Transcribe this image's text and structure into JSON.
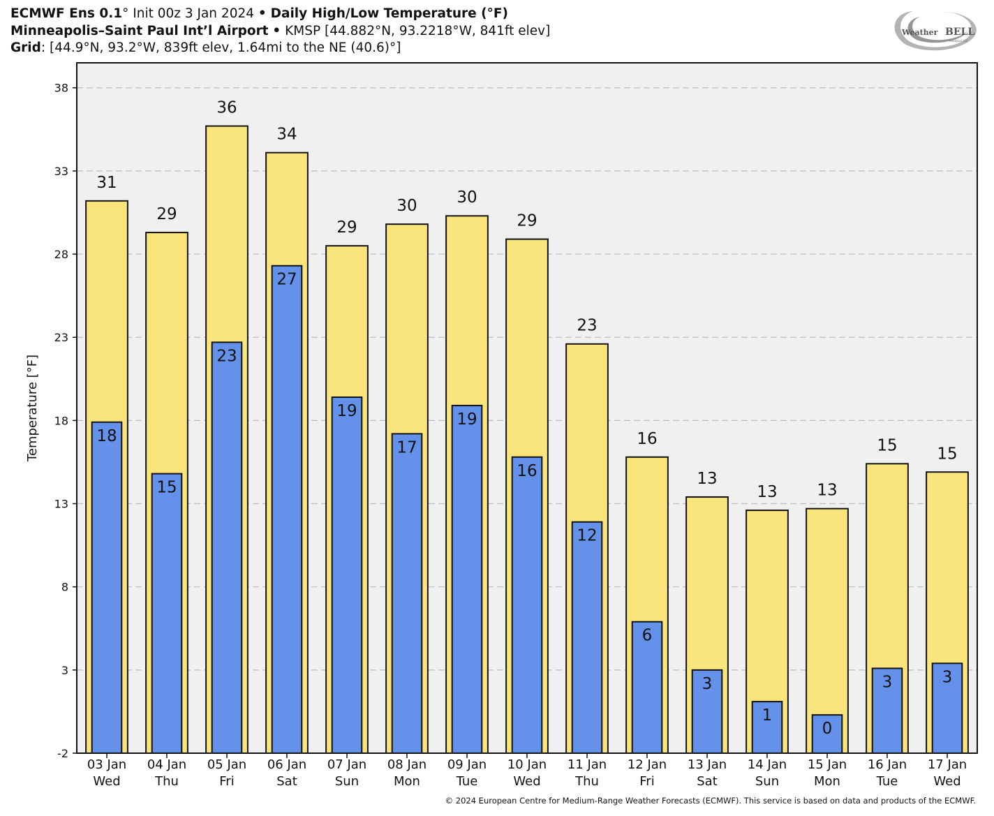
{
  "header": {
    "line1": {
      "model": "ECMWF Ens 0.1",
      "deg": "°",
      "init": "Init 00z 3 Jan 2024",
      "bullet": "•",
      "product": "Daily High/Low Temperature (°F)"
    },
    "line2": {
      "station": "Minneapolis–Saint Paul Int’l Airport",
      "bullet": "•",
      "details": "KMSP [44.882°N, 93.2218°W, 841ft elev]"
    },
    "line3": {
      "label": "Grid",
      "details": ": [44.9°N, 93.2°W, 839ft elev, 1.64mi to the NE (40.6)°]"
    }
  },
  "logo": {
    "text_left": "Weather",
    "text_right": "BELL",
    "tagline": "Analytics LLC"
  },
  "footer": "© 2024 European Centre for Medium-Range Weather Forecasts (ECMWF). This service is based on data and products of the ECMWF.",
  "colors": {
    "high": "#fae57c",
    "low": "#6492ea",
    "plot_bg": "#f0f0f0",
    "grid": "#bdbdbd"
  },
  "chart_data": {
    "type": "bar",
    "ylabel": "Temperature [°F]",
    "ylim": [
      -2,
      39.5
    ],
    "yticks": [
      -2,
      3,
      8,
      13,
      18,
      23,
      28,
      33,
      38
    ],
    "grid": true,
    "categories": [
      {
        "date": "03 Jan",
        "day": "Wed"
      },
      {
        "date": "04 Jan",
        "day": "Thu"
      },
      {
        "date": "05 Jan",
        "day": "Fri"
      },
      {
        "date": "06 Jan",
        "day": "Sat"
      },
      {
        "date": "07 Jan",
        "day": "Sun"
      },
      {
        "date": "08 Jan",
        "day": "Mon"
      },
      {
        "date": "09 Jan",
        "day": "Tue"
      },
      {
        "date": "10 Jan",
        "day": "Wed"
      },
      {
        "date": "11 Jan",
        "day": "Thu"
      },
      {
        "date": "12 Jan",
        "day": "Fri"
      },
      {
        "date": "13 Jan",
        "day": "Sat"
      },
      {
        "date": "14 Jan",
        "day": "Sun"
      },
      {
        "date": "15 Jan",
        "day": "Mon"
      },
      {
        "date": "16 Jan",
        "day": "Tue"
      },
      {
        "date": "17 Jan",
        "day": "Wed"
      }
    ],
    "series": [
      {
        "name": "High",
        "values": [
          31.2,
          29.3,
          35.7,
          34.1,
          28.5,
          29.8,
          30.3,
          28.9,
          22.6,
          15.8,
          13.4,
          12.6,
          12.7,
          15.4,
          14.9
        ],
        "labels": [
          "31",
          "29",
          "36",
          "34",
          "29",
          "30",
          "30",
          "29",
          "23",
          "16",
          "13",
          "13",
          "13",
          "15",
          "15"
        ]
      },
      {
        "name": "Low",
        "values": [
          17.9,
          14.8,
          22.7,
          27.3,
          19.4,
          17.2,
          18.9,
          15.8,
          11.9,
          5.9,
          3.0,
          1.1,
          0.3,
          3.1,
          3.4
        ],
        "labels": [
          "18",
          "15",
          "23",
          "27",
          "19",
          "17",
          "19",
          "16",
          "12",
          "6",
          "3",
          "1",
          "0",
          "3",
          "3"
        ]
      }
    ]
  }
}
